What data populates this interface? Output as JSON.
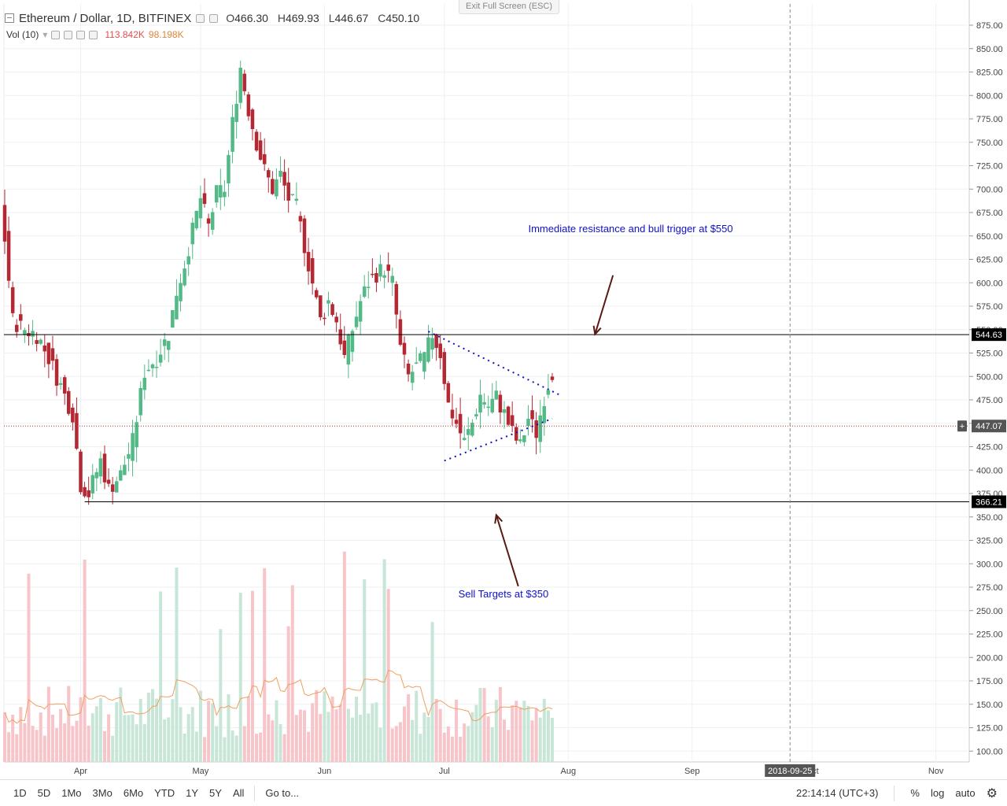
{
  "header": {
    "symbol_title": "Ethereum / Dollar, 1D, BITFINEX",
    "open_label": "O",
    "open": "466.30",
    "high_label": "H",
    "high": "469.93",
    "low_label": "L",
    "low": "446.67",
    "close_label": "C",
    "close": "450.10",
    "exit_fullscreen": "Exit Full Screen (ESC)"
  },
  "volume_legend": {
    "label": "Vol (10)",
    "volume": "113.842K",
    "ma": "98.198K"
  },
  "bottom_bar": {
    "ranges": [
      "1D",
      "5D",
      "1Mo",
      "3Mo",
      "6Mo",
      "YTD",
      "1Y",
      "5Y",
      "All"
    ],
    "goto": "Go to...",
    "clock": "22:14:14 (UTC+3)",
    "percent": "%",
    "log": "log",
    "auto": "auto"
  },
  "colors": {
    "up": "#53b987",
    "down": "#b22833",
    "vol_up": "#c8e6d7",
    "vol_down": "#f7c5c9",
    "annotation": "#1010c8",
    "arrow": "#5a1a12",
    "price_line": "#c0392b",
    "vol_ma": "#f0a060"
  },
  "chart_data": {
    "type": "candlestick",
    "title": "Ethereum / Dollar, 1D, BITFINEX",
    "y_ticks": [
      100,
      125,
      150,
      175,
      200,
      225,
      250,
      275,
      300,
      325,
      350,
      375,
      400,
      425,
      450,
      475,
      500,
      525,
      550,
      575,
      600,
      625,
      650,
      675,
      700,
      725,
      750,
      775,
      800,
      825,
      850,
      875
    ],
    "x_ticks": [
      "Apr",
      "May",
      "Jun",
      "Jul",
      "Aug",
      "Sep",
      "Oct",
      "Nov"
    ],
    "x_start": "2018-03-13",
    "x_cursor_label": "2018-09-25",
    "current_price_label": "447.07",
    "levels": [
      {
        "value": 544.63,
        "label": "544.63"
      },
      {
        "value": 366.21,
        "label": "366.21"
      }
    ],
    "annotations": [
      {
        "text": "Immediate resistance and bull trigger at $550"
      },
      {
        "text": "Sell Targets at $350"
      }
    ],
    "ohlc_close_path": [
      [
        0,
        690
      ],
      [
        3,
        560
      ],
      [
        6,
        550
      ],
      [
        9,
        545
      ],
      [
        12,
        520
      ],
      [
        15,
        490
      ],
      [
        18,
        460
      ],
      [
        20,
        385
      ],
      [
        22,
        375
      ],
      [
        25,
        410
      ],
      [
        27,
        380
      ],
      [
        30,
        395
      ],
      [
        33,
        430
      ],
      [
        36,
        505
      ],
      [
        39,
        520
      ],
      [
        42,
        545
      ],
      [
        44,
        590
      ],
      [
        46,
        620
      ],
      [
        48,
        655
      ],
      [
        50,
        690
      ],
      [
        52,
        660
      ],
      [
        54,
        695
      ],
      [
        56,
        700
      ],
      [
        58,
        770
      ],
      [
        60,
        830
      ],
      [
        62,
        785
      ],
      [
        64,
        750
      ],
      [
        66,
        720
      ],
      [
        68,
        700
      ],
      [
        70,
        715
      ],
      [
        72,
        690
      ],
      [
        74,
        680
      ],
      [
        76,
        640
      ],
      [
        78,
        600
      ],
      [
        80,
        560
      ],
      [
        82,
        580
      ],
      [
        84,
        560
      ],
      [
        86,
        520
      ],
      [
        88,
        550
      ],
      [
        90,
        580
      ],
      [
        92,
        600
      ],
      [
        94,
        610
      ],
      [
        96,
        615
      ],
      [
        98,
        600
      ],
      [
        100,
        530
      ],
      [
        102,
        500
      ],
      [
        104,
        510
      ],
      [
        106,
        520
      ],
      [
        108,
        545
      ],
      [
        110,
        525
      ],
      [
        112,
        470
      ],
      [
        114,
        450
      ],
      [
        116,
        430
      ],
      [
        118,
        450
      ],
      [
        120,
        480
      ],
      [
        122,
        468
      ],
      [
        124,
        478
      ],
      [
        126,
        460
      ],
      [
        128,
        440
      ],
      [
        130,
        425
      ],
      [
        132,
        455
      ],
      [
        134,
        440
      ],
      [
        136,
        478
      ],
      [
        138,
        505
      ],
      [
        140,
        470
      ],
      [
        142,
        460
      ],
      [
        144,
        470
      ],
      [
        146,
        468
      ],
      [
        148,
        470
      ],
      [
        150,
        450
      ]
    ],
    "volume_ma_label": "Vol (10)"
  }
}
